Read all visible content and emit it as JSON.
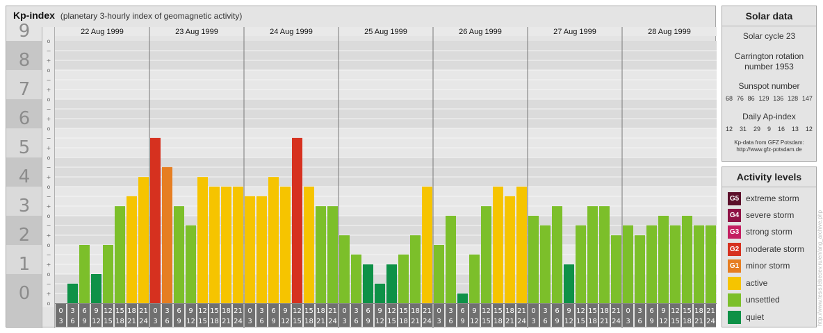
{
  "header": {
    "title": "Kp-index",
    "subtitle": "(planetary 3-hourly index of geomagnetic activity)"
  },
  "chart_data": {
    "type": "bar",
    "title": "Kp-index",
    "subtitle": "(planetary 3-hourly index of geomagnetic activity)",
    "y_axis": {
      "ylim": [
        0,
        9
      ],
      "tick_labels": [
        "0",
        "1",
        "2",
        "3",
        "4",
        "5",
        "6",
        "7",
        "8",
        "9"
      ],
      "minor_marks": [
        "o",
        "+",
        "−"
      ]
    },
    "days": [
      "22 Aug 1999",
      "23 Aug 1999",
      "24 Aug 1999",
      "25 Aug 1999",
      "26 Aug 1999",
      "27 Aug 1999",
      "28 Aug 1999"
    ],
    "interval_labels": [
      [
        "0",
        "3"
      ],
      [
        "3",
        "6"
      ],
      [
        "6",
        "9"
      ],
      [
        "9",
        "12"
      ],
      [
        "12",
        "15"
      ],
      [
        "15",
        "18"
      ],
      [
        "18",
        "21"
      ],
      [
        "21",
        "24"
      ]
    ],
    "values": [
      [
        0,
        0.67,
        2,
        1,
        2,
        3.33,
        3.67,
        4.33
      ],
      [
        5.67,
        4.67,
        3.33,
        2.67,
        4.33,
        4,
        4,
        4
      ],
      [
        3.67,
        3.67,
        4.33,
        4,
        5.67,
        4,
        3.33,
        3.33
      ],
      [
        2.33,
        1.67,
        1.33,
        0.67,
        1.33,
        1.67,
        2.33,
        4
      ],
      [
        2,
        3,
        0.33,
        1.67,
        3.33,
        4,
        3.67,
        4
      ],
      [
        3,
        2.67,
        3.33,
        1.33,
        2.67,
        3.33,
        3.33,
        2.33
      ],
      [
        2.67,
        2.33,
        2.67,
        3,
        2.67,
        3,
        2.67,
        2.67
      ]
    ],
    "grid": true
  },
  "solar": {
    "title": "Solar data",
    "cycle": "Solar cycle 23",
    "carrington_1": "Carrington rotation",
    "carrington_2": "number 1953",
    "sunspot_title": "Sunspot number",
    "sunspot": [
      "68",
      "76",
      "86",
      "129",
      "136",
      "128",
      "147"
    ],
    "ap_title": "Daily Ap-index",
    "ap": [
      "12",
      "31",
      "29",
      "9",
      "16",
      "13",
      "12"
    ],
    "credit_1": "Kp-data from  GFZ Potsdam:",
    "credit_2": "http://www.gfz-potsdam.de"
  },
  "legend": {
    "title": "Activity levels",
    "items": [
      {
        "badge": "G5",
        "label": "extreme storm",
        "color": "#5b0f2a"
      },
      {
        "badge": "G4",
        "label": "severe storm",
        "color": "#8e1245"
      },
      {
        "badge": "G3",
        "label": "strong storm",
        "color": "#c41f61"
      },
      {
        "badge": "G2",
        "label": "moderate storm",
        "color": "#d6311f"
      },
      {
        "badge": "G1",
        "label": "minor storm",
        "color": "#e67e22"
      },
      {
        "badge": "",
        "label": "active",
        "color": "#f6c400"
      },
      {
        "badge": "",
        "label": "unsettled",
        "color": "#7cbf2a"
      },
      {
        "badge": "",
        "label": "quiet",
        "color": "#0e9147"
      }
    ]
  },
  "watermark": "http://www.tesis.lebedev.ru/en/ang_archive.php"
}
